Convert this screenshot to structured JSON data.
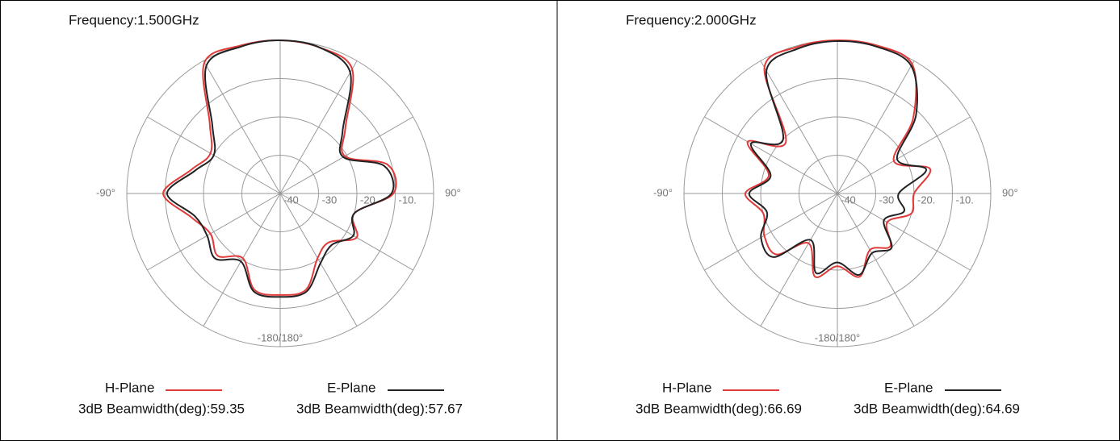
{
  "chart_data": [
    {
      "type": "polar",
      "title": "Frequency:1.500GHz",
      "rlim": [
        -40,
        0
      ],
      "rticks": [
        -40,
        -30,
        -20,
        {
          "value": -10,
          "label": "-10."
        }
      ],
      "thetagrid": [
        0,
        30,
        60,
        90,
        120,
        150,
        180,
        210,
        240,
        270,
        300,
        330
      ],
      "thetaticks": [
        {
          "value": -90,
          "label": "-90°"
        },
        {
          "value": 90,
          "label": "90°"
        },
        {
          "value": 180,
          "label": "-180/180°"
        }
      ],
      "theta": [
        0,
        15,
        30,
        45,
        60,
        75,
        90,
        105,
        120,
        135,
        150,
        165,
        180,
        195,
        210,
        225,
        240,
        255,
        270,
        285,
        300,
        315,
        330,
        345
      ],
      "series": [
        {
          "name": "H-Plane",
          "color": "#e03a3a",
          "beamwidth_label": "3dB Beamwidth(deg):59.35",
          "values": [
            0,
            -0.5,
            -2.5,
            -16,
            -20.5,
            -11,
            -10.5,
            -20,
            -17,
            -22,
            -20.5,
            -14,
            -13.5,
            -14,
            -20.5,
            -17,
            -19,
            -16,
            -9.5,
            -16,
            -19,
            -14,
            -0.5,
            0
          ]
        },
        {
          "name": "E-Plane",
          "color": "#222222",
          "beamwidth_label": "3dB Beamwidth(deg):57.67",
          "values": [
            0,
            -0.5,
            -3.5,
            -17,
            -21,
            -12,
            -11,
            -20,
            -18,
            -21,
            -19,
            -13.5,
            -13,
            -13.5,
            -19.5,
            -16,
            -18,
            -17,
            -10.5,
            -17,
            -20,
            -15,
            -1.5,
            -0.3
          ]
        }
      ]
    },
    {
      "type": "polar",
      "title": "Frequency:2.000GHz",
      "rlim": [
        -40,
        0
      ],
      "rticks": [
        -40,
        -30,
        {
          "value": -20,
          "label": "-20."
        },
        {
          "value": -10,
          "label": "-10."
        }
      ],
      "thetagrid": [
        0,
        30,
        60,
        90,
        120,
        150,
        180,
        210,
        240,
        270,
        300,
        330
      ],
      "thetaticks": [
        {
          "value": -90,
          "label": "-90°"
        },
        {
          "value": 90,
          "label": "90°"
        },
        {
          "value": 180,
          "label": "-180/180°"
        }
      ],
      "theta": [
        0,
        15,
        30,
        45,
        60,
        75,
        90,
        105,
        120,
        135,
        150,
        165,
        180,
        195,
        210,
        225,
        240,
        255,
        270,
        285,
        300,
        315,
        330,
        345
      ],
      "series": [
        {
          "name": "H-Plane",
          "color": "#e03a3a",
          "beamwidth_label": "3dB Beamwidth(deg):66.69",
          "values": [
            0,
            0,
            -1,
            -12,
            -23,
            -15,
            -20,
            -20,
            -25,
            -20.5,
            -23,
            -17.5,
            -21,
            -17.5,
            -25,
            -17.5,
            -18,
            -20,
            -16,
            -21.5,
            -13,
            -21,
            -2,
            -0.3
          ]
        },
        {
          "name": "E-Plane",
          "color": "#222222",
          "beamwidth_label": "3dB Beamwidth(deg):64.69",
          "values": [
            -0.2,
            -0.3,
            -1.5,
            -11,
            -22,
            -16,
            -24,
            -22,
            -26,
            -20,
            -22,
            -18,
            -22,
            -18.5,
            -26,
            -16.5,
            -17,
            -21,
            -17,
            -22,
            -14,
            -20,
            -3,
            -0.8
          ]
        }
      ]
    }
  ]
}
